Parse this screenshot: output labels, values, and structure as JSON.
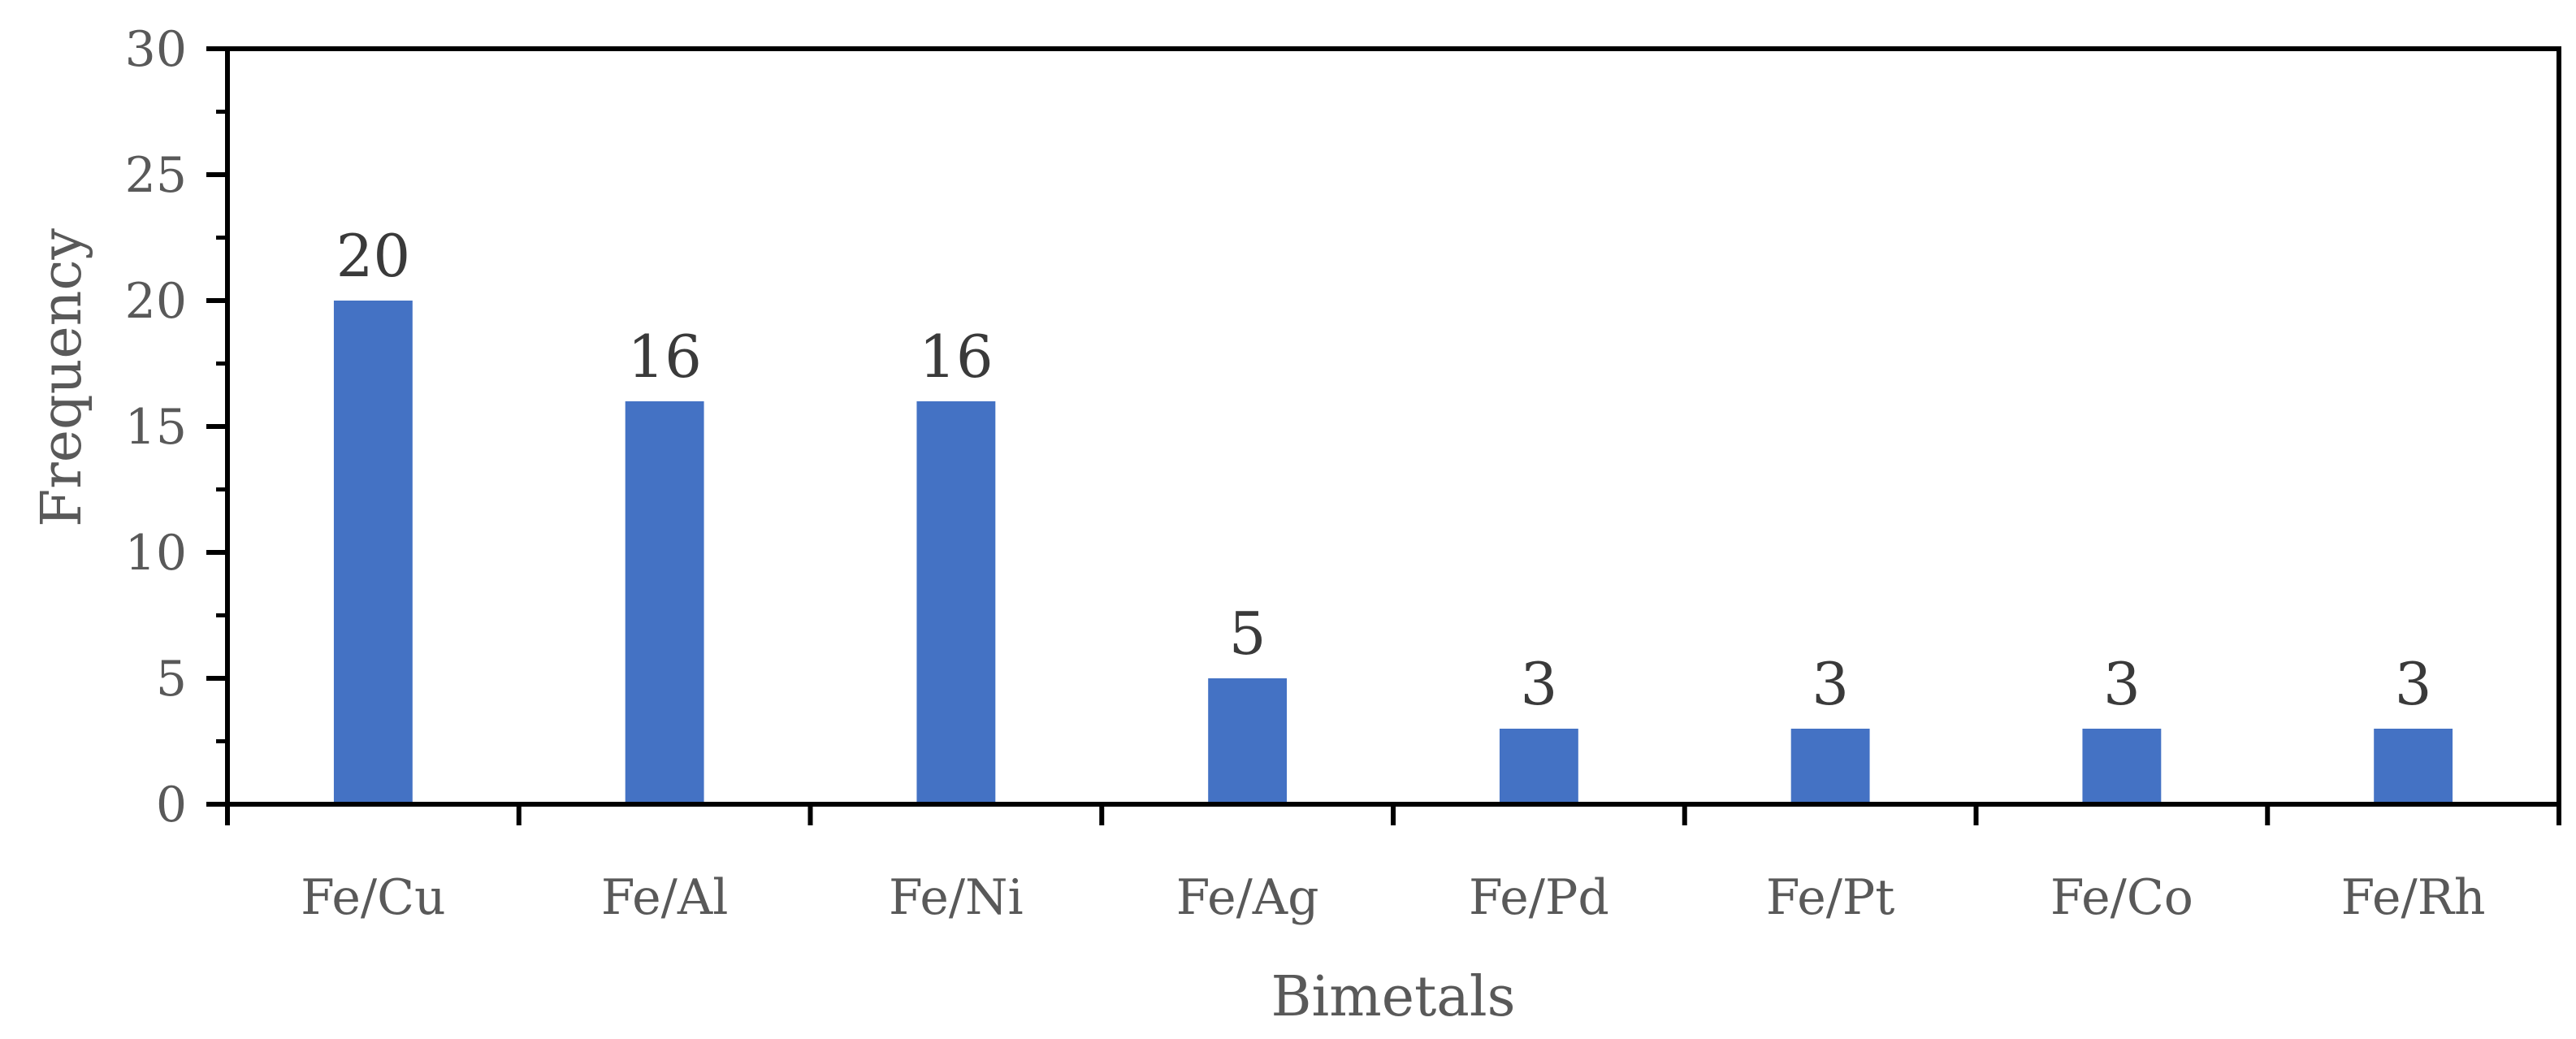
{
  "chart_data": {
    "type": "bar",
    "title": "",
    "xlabel": "Bimetals",
    "ylabel": "Frequency",
    "categories": [
      "Fe/Cu",
      "Fe/Al",
      "Fe/Ni",
      "Fe/Ag",
      "Fe/Pd",
      "Fe/Pt",
      "Fe/Co",
      "Fe/Rh"
    ],
    "values": [
      20,
      16,
      16,
      5,
      3,
      3,
      3,
      3
    ],
    "data_labels": [
      "20",
      "16",
      "16",
      "5",
      "3",
      "3",
      "3",
      "3"
    ],
    "ylim": [
      0,
      30
    ],
    "y_ticks": [
      0,
      5,
      10,
      15,
      20,
      25,
      30
    ],
    "y_minor_ticks": [
      2.5,
      7.5,
      12.5,
      17.5,
      22.5,
      27.5
    ],
    "grid": false,
    "legend": "none",
    "colors": {
      "bar": "#4472C4",
      "axis": "#000000",
      "tick_label": "#595959",
      "data_label": "#3a3a3a"
    }
  }
}
